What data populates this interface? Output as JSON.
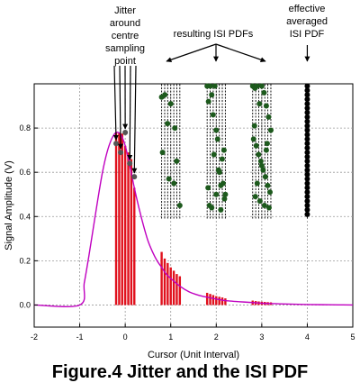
{
  "chart_data": {
    "type": "line",
    "title": "",
    "xlabel": "Cursor (Unit Interval)",
    "ylabel": "Signal Amplitude (V)",
    "xlim": [
      -2,
      5
    ],
    "ylim": [
      -0.1,
      1.0
    ],
    "xticks": [
      -2,
      -1,
      0,
      1,
      2,
      3,
      4,
      5
    ],
    "yticks": [
      0.0,
      0.2,
      0.4,
      0.6,
      0.8
    ],
    "grid": true,
    "series": [
      {
        "kind": "pulse-response",
        "color": "#c000c0",
        "x": [
          -2,
          -1.0,
          -0.9,
          -0.8,
          -0.7,
          -0.6,
          -0.5,
          -0.4,
          -0.3,
          -0.2,
          -0.1,
          0.0,
          0.1,
          0.2,
          0.3,
          0.4,
          0.5,
          0.6,
          0.7,
          0.8,
          0.9,
          1.0,
          1.2,
          1.4,
          1.6,
          1.8,
          2.0,
          2.2,
          2.5,
          2.8,
          3.0,
          3.3,
          3.6,
          4.0,
          4.5,
          5.0
        ],
        "y": [
          0,
          0.0,
          0.1,
          0.22,
          0.35,
          0.48,
          0.6,
          0.69,
          0.75,
          0.78,
          0.77,
          0.72,
          0.63,
          0.53,
          0.44,
          0.36,
          0.29,
          0.24,
          0.2,
          0.17,
          0.14,
          0.12,
          0.085,
          0.06,
          0.045,
          0.035,
          0.027,
          0.02,
          0.015,
          0.011,
          0.008,
          0.006,
          0.004,
          0.002,
          0.001,
          0.0
        ]
      }
    ],
    "sample_bars": {
      "color": "#e0101c",
      "groups": [
        {
          "x": [
            -0.2,
            -0.133,
            -0.067,
            0.0,
            0.067,
            0.133,
            0.2
          ],
          "y": [
            0.78,
            0.78,
            0.775,
            0.72,
            0.69,
            0.66,
            0.53
          ]
        },
        {
          "x": [
            0.8,
            0.867,
            0.933,
            1.0,
            1.067,
            1.133,
            1.2
          ],
          "y": [
            0.24,
            0.21,
            0.19,
            0.17,
            0.155,
            0.14,
            0.13
          ]
        },
        {
          "x": [
            1.8,
            1.867,
            1.933,
            2.0,
            2.067,
            2.133,
            2.2
          ],
          "y": [
            0.055,
            0.05,
            0.045,
            0.04,
            0.037,
            0.034,
            0.03
          ]
        },
        {
          "x": [
            2.8,
            2.867,
            2.933,
            3.0,
            3.067,
            3.133,
            3.2
          ],
          "y": [
            0.02,
            0.018,
            0.016,
            0.015,
            0.014,
            0.013,
            0.012
          ]
        }
      ]
    },
    "jitter_points": {
      "color": "#555555",
      "x": [
        -0.2,
        -0.1,
        0.0,
        0.1,
        0.2
      ],
      "y": [
        0.73,
        0.69,
        0.78,
        0.64,
        0.58
      ]
    },
    "isi_pdf_points": {
      "color": "#1d5a1d",
      "groups": [
        {
          "lines_x": [
            0.8,
            0.867,
            0.933,
            1.0,
            1.067,
            1.133,
            1.2
          ],
          "x": [
            0.8,
            0.87,
            0.93,
            1.0,
            1.07,
            1.13,
            1.2,
            0.82,
            0.96,
            1.09
          ],
          "y": [
            0.94,
            0.95,
            0.82,
            0.91,
            0.55,
            0.65,
            0.45,
            0.69,
            0.57,
            0.8
          ]
        },
        {
          "lines_x": [
            1.8,
            1.867,
            1.933,
            2.0,
            2.067,
            2.133,
            2.2
          ],
          "x": [
            1.8,
            1.83,
            1.87,
            1.9,
            1.93,
            1.97,
            2.0,
            2.03,
            2.07,
            2.1,
            2.13,
            2.17,
            2.2,
            1.85,
            1.95,
            2.05,
            2.15,
            1.82,
            1.9,
            2.0,
            2.1,
            2.18
          ],
          "y": [
            0.99,
            0.92,
            0.99,
            0.95,
            0.86,
            0.99,
            0.79,
            0.75,
            0.6,
            0.54,
            0.66,
            0.7,
            0.5,
            0.45,
            0.68,
            0.61,
            0.55,
            0.53,
            0.44,
            0.5,
            0.43,
            0.48
          ]
        },
        {
          "lines_x": [
            2.8,
            2.867,
            2.933,
            3.0,
            3.067,
            3.133,
            3.2
          ],
          "x": [
            2.8,
            2.85,
            2.9,
            2.95,
            3.0,
            3.05,
            3.1,
            3.15,
            3.2,
            2.82,
            2.88,
            2.93,
            2.98,
            3.03,
            3.08,
            3.13,
            3.18,
            2.86,
            2.96,
            3.06,
            3.16,
            2.9,
            3.0,
            3.1,
            2.84,
            3.12
          ],
          "y": [
            0.99,
            0.98,
            0.99,
            0.91,
            0.99,
            0.96,
            0.9,
            0.85,
            0.79,
            0.75,
            0.72,
            0.68,
            0.65,
            0.61,
            0.58,
            0.54,
            0.51,
            0.49,
            0.47,
            0.45,
            0.44,
            0.55,
            0.63,
            0.7,
            0.81,
            0.73
          ]
        }
      ]
    },
    "averaged_pdf": {
      "color": "#000000",
      "x": 4.0,
      "y": [
        0.99,
        0.97,
        0.95,
        0.93,
        0.91,
        0.89,
        0.87,
        0.85,
        0.83,
        0.81,
        0.79,
        0.77,
        0.75,
        0.73,
        0.71,
        0.69,
        0.67,
        0.65,
        0.63,
        0.61,
        0.59,
        0.57,
        0.55,
        0.53,
        0.51,
        0.49,
        0.47,
        0.45,
        0.43,
        0.41
      ]
    },
    "annotations": [
      {
        "id": "jitter",
        "text": [
          "Jitter",
          "around",
          "centre",
          "sampling",
          "point"
        ]
      },
      {
        "id": "isi",
        "text": [
          "resulting ISI PDFs"
        ]
      },
      {
        "id": "averaged",
        "text": [
          "effective",
          "averaged",
          "ISI PDF"
        ]
      }
    ]
  },
  "caption": "Figure.4 Jitter and the ISI PDF"
}
